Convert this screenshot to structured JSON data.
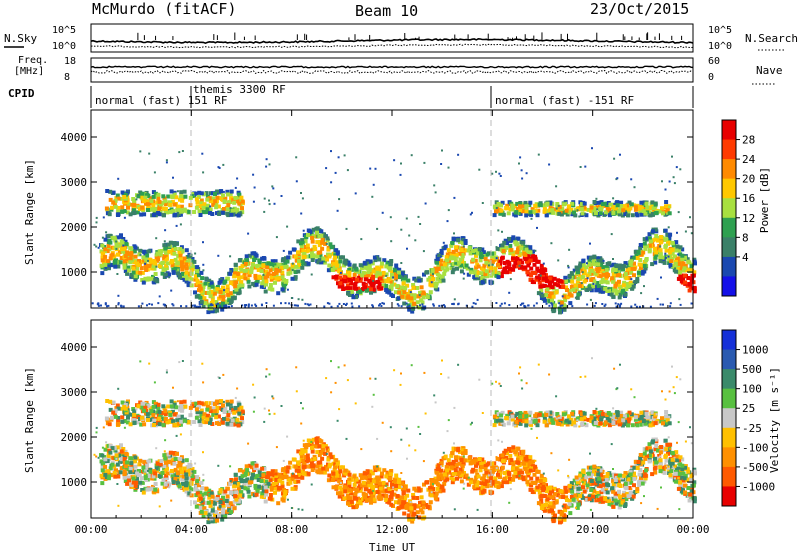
{
  "header": {
    "title_left": "McMurdo (fitACF)",
    "title_center": "Beam 10",
    "title_right": "23/Oct/2015"
  },
  "sky_panel": {
    "left_label": "N.Sky",
    "right_label": "N.Search",
    "left_ticks": [
      "10^5",
      "10^0"
    ],
    "right_ticks": [
      "10^5",
      "10^0"
    ]
  },
  "freq_panel": {
    "left_label_1": "Freq.",
    "left_label_2": "[MHz]",
    "right_label": "Nave",
    "left_ticks": [
      "18",
      "8"
    ],
    "right_ticks": [
      "60",
      "0"
    ]
  },
  "cpid_panel": {
    "label": "CPID",
    "modes": [
      {
        "text": "normal (fast) 151 RF"
      },
      {
        "text": "themis 3300 RF"
      },
      {
        "text": "normal (fast) -151 RF"
      }
    ]
  },
  "power_colorbar": {
    "label": "Power [dB]",
    "ticks": [
      "28",
      "24",
      "20",
      "16",
      "12",
      "8",
      "4"
    ],
    "colors": [
      "#e80000",
      "#ff3a00",
      "#ff8a00",
      "#ffc800",
      "#a8e040",
      "#2ea050",
      "#3a8068",
      "#1a48b0",
      "#1410e8"
    ]
  },
  "velocity_colorbar": {
    "label": "Velocity [m s⁻¹]",
    "ticks": [
      "1000",
      "500",
      "100",
      "25",
      "-25",
      "-100",
      "-500",
      "-1000"
    ],
    "colors": [
      "#1530d8",
      "#2a5ab0",
      "#3a8a6a",
      "#58c040",
      "#c8c8c8",
      "#ffc000",
      "#ff9000",
      "#ff5a00",
      "#e80000"
    ]
  },
  "chart_data": [
    {
      "type": "heatmap",
      "name_in_data": "power",
      "ylabel": "Slant Range [km]",
      "yticks": [
        "4000",
        "3000",
        "2000",
        "1000"
      ],
      "ylim": [
        200,
        4600
      ],
      "xlim": [
        0,
        24
      ],
      "echo_bands": [
        {
          "t0": 0.3,
          "t1": 24,
          "r0": 550,
          "r1": 1700
        },
        {
          "t0": 0.5,
          "t1": 6.0,
          "r0": 2300,
          "r1": 2850
        },
        {
          "t0": 16.0,
          "t1": 23.0,
          "r0": 2300,
          "r1": 2600
        }
      ],
      "strong_regions": [
        {
          "t0": 16.2,
          "t1": 18.8,
          "r0": 700,
          "r1": 1400
        },
        {
          "t0": 22.0,
          "t1": 24.0,
          "r0": 600,
          "r1": 1000
        },
        {
          "t0": 9.5,
          "t1": 11.5,
          "r0": 650,
          "r1": 950
        }
      ]
    },
    {
      "type": "heatmap",
      "name_in_data": "velocity",
      "ylabel": "Slant Range [km]",
      "yticks": [
        "4000",
        "3000",
        "2000",
        "1000"
      ],
      "ylim": [
        200,
        4600
      ],
      "xlim": [
        0,
        24
      ],
      "xlabel": "Time UT",
      "xticks": [
        "00:00",
        "04:00",
        "08:00",
        "12:00",
        "16:00",
        "20:00",
        "00:00"
      ]
    }
  ]
}
